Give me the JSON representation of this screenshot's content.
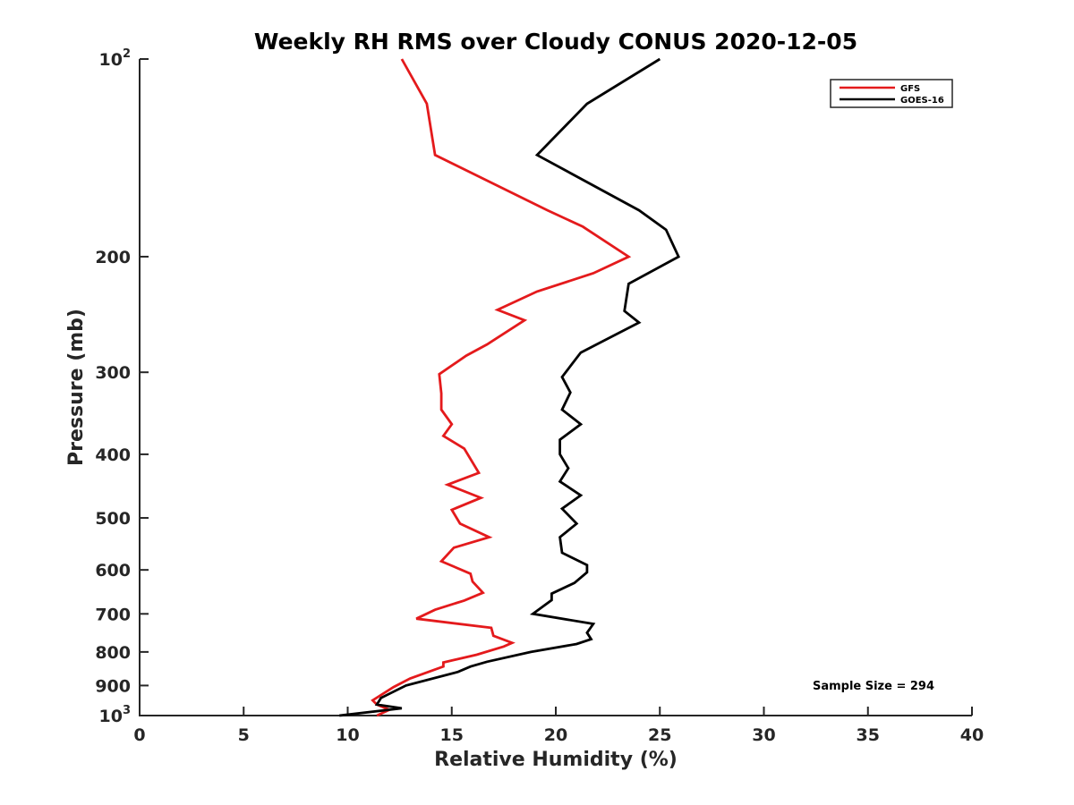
{
  "chart_data": {
    "type": "line",
    "title": "Weekly RH RMS over Cloudy CONUS 2020-12-05",
    "xlabel": "Relative Humidity (%)",
    "ylabel": "Pressure (mb)",
    "xlim": [
      0,
      40
    ],
    "ylim": [
      1000,
      100
    ],
    "y_scale": "log",
    "x_ticks": [
      "0",
      "5",
      "10",
      "15",
      "20",
      "25",
      "30",
      "35",
      "40"
    ],
    "y_ticks": [
      {
        "value": 100,
        "base": "10",
        "exp": "2"
      },
      {
        "value": 200,
        "label": "200"
      },
      {
        "value": 300,
        "label": "300"
      },
      {
        "value": 400,
        "label": "400"
      },
      {
        "value": 500,
        "label": "500"
      },
      {
        "value": 600,
        "label": "600"
      },
      {
        "value": 700,
        "label": "700"
      },
      {
        "value": 800,
        "label": "800"
      },
      {
        "value": 900,
        "label": "900"
      },
      {
        "value": 1000,
        "base": "10",
        "exp": "3"
      }
    ],
    "legend_position": "top-right",
    "annotation": "Sample Size = 294",
    "series": [
      {
        "name": "GFS",
        "color": "#e41a1c",
        "points": [
          [
            12.6,
            100
          ],
          [
            13.8,
            117
          ],
          [
            14.2,
            140
          ],
          [
            19.6,
            170
          ],
          [
            21.3,
            180
          ],
          [
            23.5,
            200
          ],
          [
            21.8,
            212
          ],
          [
            19.1,
            226
          ],
          [
            17.2,
            241
          ],
          [
            18.5,
            250
          ],
          [
            16.7,
            272
          ],
          [
            15.7,
            283
          ],
          [
            14.4,
            302
          ],
          [
            14.5,
            323
          ],
          [
            14.5,
            342
          ],
          [
            15.0,
            360
          ],
          [
            14.6,
            375
          ],
          [
            15.6,
            392
          ],
          [
            16.3,
            427
          ],
          [
            14.8,
            445
          ],
          [
            16.4,
            466
          ],
          [
            15.0,
            486
          ],
          [
            15.4,
            510
          ],
          [
            16.8,
            535
          ],
          [
            15.1,
            555
          ],
          [
            14.5,
            582
          ],
          [
            15.9,
            608
          ],
          [
            16.0,
            625
          ],
          [
            16.5,
            650
          ],
          [
            15.6,
            668
          ],
          [
            14.2,
            690
          ],
          [
            13.3,
            712
          ],
          [
            16.9,
            735
          ],
          [
            17.0,
            756
          ],
          [
            17.9,
            775
          ],
          [
            17.5,
            785
          ],
          [
            16.2,
            808
          ],
          [
            14.6,
            830
          ],
          [
            14.6,
            842
          ],
          [
            13.0,
            878
          ],
          [
            12.2,
            905
          ],
          [
            11.2,
            948
          ],
          [
            11.4,
            962
          ],
          [
            12.0,
            980
          ],
          [
            11.4,
            1000
          ]
        ]
      },
      {
        "name": "GOES-16",
        "color": "#000000",
        "points": [
          [
            25.0,
            100
          ],
          [
            21.5,
            117
          ],
          [
            19.1,
            140
          ],
          [
            24.0,
            170
          ],
          [
            25.3,
            182
          ],
          [
            25.9,
            200
          ],
          [
            23.5,
            220
          ],
          [
            23.3,
            242
          ],
          [
            24.0,
            252
          ],
          [
            21.2,
            280
          ],
          [
            20.3,
            305
          ],
          [
            20.7,
            322
          ],
          [
            20.3,
            342
          ],
          [
            21.2,
            360
          ],
          [
            20.2,
            380
          ],
          [
            20.2,
            400
          ],
          [
            20.6,
            420
          ],
          [
            20.2,
            440
          ],
          [
            21.2,
            462
          ],
          [
            20.3,
            484
          ],
          [
            21.0,
            510
          ],
          [
            20.2,
            535
          ],
          [
            20.3,
            565
          ],
          [
            21.5,
            590
          ],
          [
            21.5,
            605
          ],
          [
            20.9,
            628
          ],
          [
            19.8,
            652
          ],
          [
            19.8,
            667
          ],
          [
            18.9,
            700
          ],
          [
            21.8,
            725
          ],
          [
            21.5,
            748
          ],
          [
            21.7,
            765
          ],
          [
            21.0,
            778
          ],
          [
            18.8,
            800
          ],
          [
            16.7,
            828
          ],
          [
            15.9,
            842
          ],
          [
            15.3,
            858
          ],
          [
            12.8,
            900
          ],
          [
            11.6,
            940
          ],
          [
            11.4,
            962
          ],
          [
            12.6,
            975
          ],
          [
            9.6,
            1000
          ]
        ]
      }
    ]
  }
}
